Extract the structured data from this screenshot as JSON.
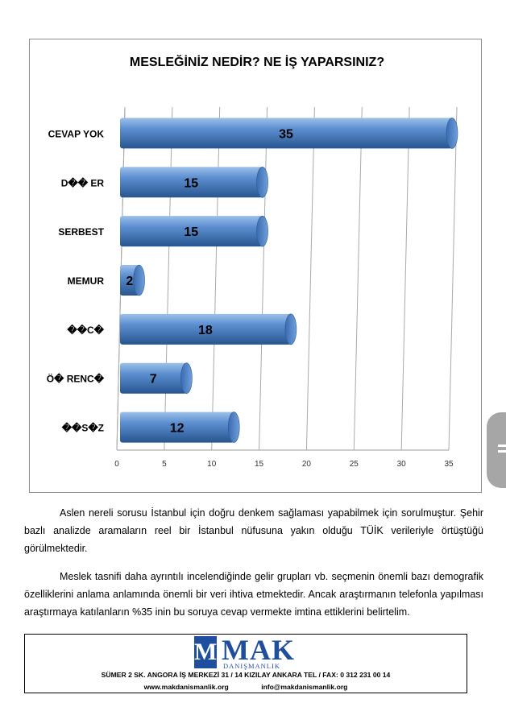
{
  "chart_data": {
    "type": "bar",
    "orientation": "horizontal",
    "title": "MESLEĞİNİZ NEDİR? NE İŞ YAPARSINIZ?",
    "categories": [
      "CEVAP YOK",
      "D�� ER",
      "SERBEST",
      "MEMUR",
      "��C�",
      "Ö� RENC�",
      "��S�Z"
    ],
    "values": [
      35,
      15,
      15,
      2,
      18,
      7,
      12
    ],
    "xlim": [
      0,
      35
    ],
    "xticks": [
      "0",
      "5",
      "10",
      "15",
      "20",
      "25",
      "30",
      "35"
    ],
    "grid": true,
    "bar_color": "#4a7fc1"
  },
  "paragraphs": [
    "Aslen nereli sorusu İstanbul için doğru denkem sağlaması yapabilmek için sorulmuştur. Şehir bazlı analizde aramaların reel bir İstanbul nüfusuna yakın olduğu TÜİK verileriyle örtüştüğü görülmektedir.",
    "Meslek tasnifi daha ayrıntılı incelendiğinde gelir grupları vb. seçmenin önemli bazı demografik özelliklerini anlama anlamında önemli bir veri ihtiva etmektedir. Ancak araştırmanın telefonla yapılması araştırmaya katılanların %35 inin bu soruya cevap vermekte imtina ettiklerini belirtelim."
  ],
  "footer": {
    "logo_letter": "M",
    "logo_text": "MAK",
    "logo_sub": "DANIŞMANLIK",
    "address": "SÜMER 2 SK. ANGORA İŞ MERKEZİ 31 / 14  KIZILAY ANKARA TEL / FAX: 0 312 231 00 14",
    "website": "www.makdanismanlik.org",
    "email": "info@makdanismanlik.org"
  }
}
